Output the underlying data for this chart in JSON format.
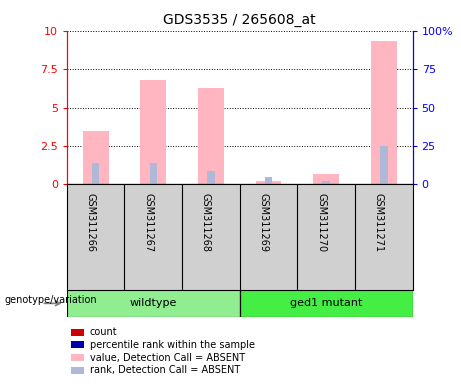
{
  "title": "GDS3535 / 265608_at",
  "samples": [
    "GSM311266",
    "GSM311267",
    "GSM311268",
    "GSM311269",
    "GSM311270",
    "GSM311271"
  ],
  "pink_bars": [
    3.5,
    6.8,
    6.3,
    0.2,
    0.7,
    9.3
  ],
  "blue_bars": [
    1.4,
    1.4,
    0.85,
    0.45,
    0.2,
    2.5
  ],
  "ylim_left": [
    0,
    10
  ],
  "ylim_right": [
    0,
    100
  ],
  "yticks_left": [
    0,
    2.5,
    5.0,
    7.5,
    10
  ],
  "yticks_right": [
    0,
    25,
    50,
    75,
    100
  ],
  "ytick_labels_left": [
    "0",
    "2.5",
    "5",
    "7.5",
    "10"
  ],
  "ytick_labels_right": [
    "0",
    "25",
    "50",
    "75",
    "100%"
  ],
  "pink_color": "#ffb6c1",
  "lightblue_color": "#b0b8d8",
  "red_color": "#cc0000",
  "blue_color": "#0000aa",
  "legend_items": [
    {
      "label": "count",
      "color": "#cc0000"
    },
    {
      "label": "percentile rank within the sample",
      "color": "#0000aa"
    },
    {
      "label": "value, Detection Call = ABSENT",
      "color": "#ffb6c1"
    },
    {
      "label": "rank, Detection Call = ABSENT",
      "color": "#b0b8d8"
    }
  ],
  "genotype_label": "genotype/variation",
  "wildtype_color": "#90ee90",
  "mutant_color": "#44ee44",
  "sample_box_color": "#d0d0d0",
  "group_info": [
    {
      "label": "wildtype",
      "start": 0,
      "end": 2
    },
    {
      "label": "ged1 mutant",
      "start": 3,
      "end": 5
    }
  ]
}
